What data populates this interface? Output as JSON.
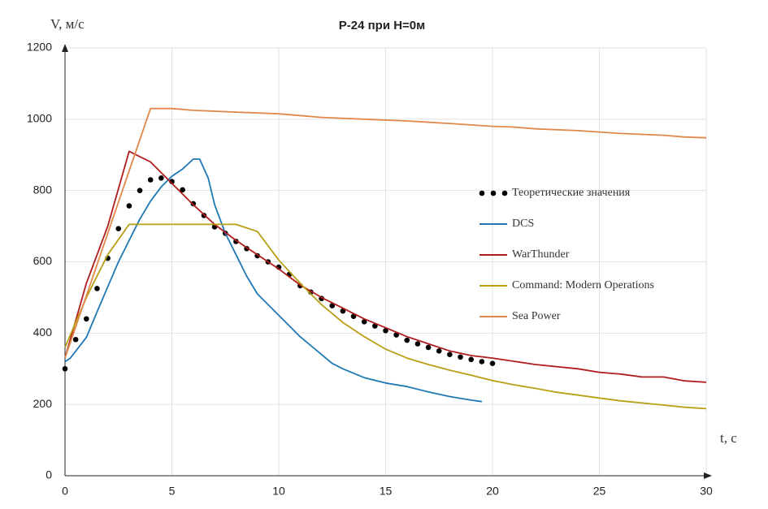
{
  "chart_data": {
    "type": "line",
    "title": "Р-24 при H=0м",
    "y_label": "V, м/с",
    "x_label": "t, с",
    "xlim": [
      0,
      30
    ],
    "xticks": [
      0,
      5,
      10,
      15,
      20,
      25,
      30
    ],
    "ylim": [
      0,
      1200
    ],
    "yticks": [
      0,
      200,
      400,
      600,
      800,
      1000,
      1200
    ],
    "grid": true,
    "legend": "right",
    "series": [
      {
        "name": "Теоретические значения",
        "color": "#000000",
        "marker": "dots",
        "x": [
          0,
          0.5,
          1,
          1.5,
          2,
          2.5,
          3,
          3.5,
          4,
          4.5,
          5,
          5.5,
          6,
          6.5,
          7,
          7.5,
          8,
          8.5,
          9,
          9.5,
          10,
          10.5,
          11,
          11.5,
          12,
          12.5,
          13,
          13.5,
          14,
          14.5,
          15,
          15.5,
          16,
          16.5,
          17,
          17.5,
          18,
          18.5,
          19,
          19.5,
          20
        ],
        "values": [
          300,
          382,
          440,
          525,
          610,
          693,
          757,
          800,
          830,
          835,
          825,
          802,
          763,
          730,
          698,
          680,
          657,
          637,
          617,
          600,
          585,
          565,
          533,
          515,
          497,
          477,
          462,
          447,
          432,
          420,
          407,
          395,
          380,
          370,
          360,
          350,
          340,
          333,
          326,
          320,
          315
        ]
      },
      {
        "name": "DCS",
        "color": "#1f78b4",
        "x": [
          0,
          0.25,
          1,
          1.5,
          2,
          2.5,
          3,
          3.5,
          4,
          4.5,
          5,
          5.5,
          6,
          6.3,
          6.7,
          7,
          7.5,
          8,
          8.5,
          9,
          10,
          11,
          12,
          12.5,
          13,
          14,
          15,
          16,
          17,
          18,
          19,
          19.5
        ],
        "values": [
          320,
          330,
          388,
          460,
          530,
          600,
          660,
          720,
          770,
          810,
          840,
          860,
          888,
          888,
          835,
          760,
          680,
          620,
          560,
          510,
          450,
          390,
          340,
          315,
          300,
          275,
          260,
          250,
          235,
          222,
          212,
          208
        ]
      },
      {
        "name": "WarThunder",
        "color": "#b01c1c",
        "x": [
          0,
          1,
          2,
          3,
          4,
          5,
          6,
          7,
          8,
          9,
          10,
          11,
          12,
          13,
          14,
          15,
          16,
          17,
          18,
          19,
          20,
          22,
          24,
          25,
          26,
          27,
          28,
          29,
          30
        ],
        "values": [
          330,
          540,
          700,
          910,
          880,
          820,
          760,
          705,
          660,
          620,
          580,
          535,
          500,
          470,
          440,
          415,
          390,
          370,
          350,
          337,
          330,
          312,
          300,
          290,
          285,
          277,
          277,
          266,
          262
        ]
      },
      {
        "name": "Command: Modern Operations",
        "color": "#b89f14",
        "x": [
          0,
          1,
          2,
          3,
          4,
          5,
          6,
          7,
          8,
          9,
          10,
          11,
          12,
          13,
          14,
          15,
          16,
          17,
          18,
          19,
          20,
          21,
          22,
          23,
          24,
          25,
          26,
          27,
          28,
          29,
          30
        ],
        "values": [
          360,
          500,
          620,
          705,
          705,
          705,
          705,
          705,
          705,
          685,
          605,
          540,
          480,
          430,
          390,
          355,
          330,
          312,
          296,
          282,
          267,
          255,
          245,
          234,
          226,
          218,
          210,
          204,
          198,
          192,
          188
        ]
      },
      {
        "name": "Sea Power",
        "color": "#e0884a",
        "x": [
          0,
          4,
          5,
          6,
          8,
          10,
          12,
          14,
          16,
          18,
          20,
          21,
          22,
          24,
          26,
          28,
          29,
          30
        ],
        "values": [
          330,
          1030,
          1030,
          1025,
          1020,
          1015,
          1005,
          1000,
          995,
          988,
          980,
          978,
          973,
          968,
          960,
          955,
          950,
          948
        ]
      }
    ]
  }
}
